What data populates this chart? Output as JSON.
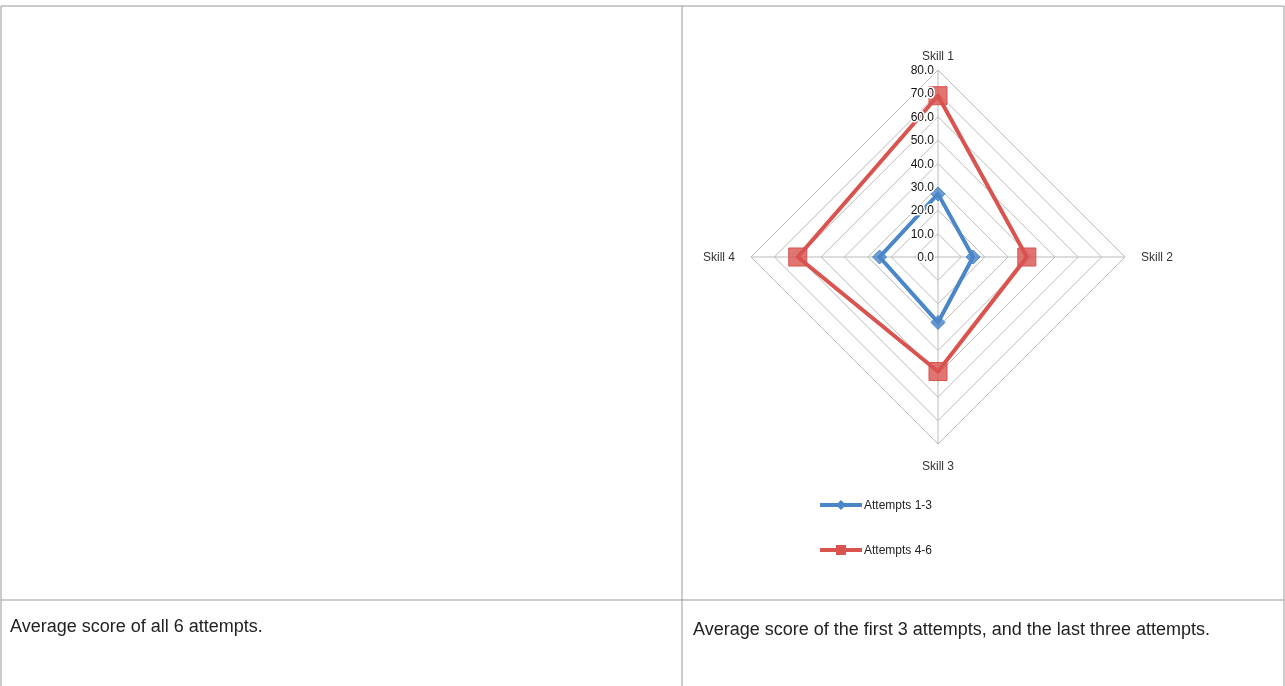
{
  "chart_data": {
    "type": "radar",
    "categories": [
      "Skill 1",
      "Skill 2",
      "Skill 3",
      "Skill 4"
    ],
    "series": [
      {
        "name": "Attempts 1-3",
        "color": "#4a86c8",
        "values": [
          27,
          15,
          28,
          25
        ]
      },
      {
        "name": "Attempts 4-6",
        "color": "#d9534f",
        "values": [
          69,
          38,
          49,
          60
        ]
      }
    ],
    "ylim": [
      0,
      80
    ],
    "yticks": [
      {
        "value": 0,
        "label": "0.0"
      },
      {
        "value": 10,
        "label": "10.0"
      },
      {
        "value": 20,
        "label": "20.0"
      },
      {
        "value": 30,
        "label": "30.0"
      },
      {
        "value": 40,
        "label": "40.0"
      },
      {
        "value": 50,
        "label": "50.0"
      },
      {
        "value": 60,
        "label": "60.0"
      },
      {
        "value": 70,
        "label": "70.0"
      },
      {
        "value": 80,
        "label": "80.0"
      }
    ],
    "grid": true,
    "legend": "bottom",
    "marker": "circle",
    "annotations": [
      "Average score of all 6 attempts.",
      "Average score of the first 3 attempts, and the last three attempts."
    ]
  }
}
